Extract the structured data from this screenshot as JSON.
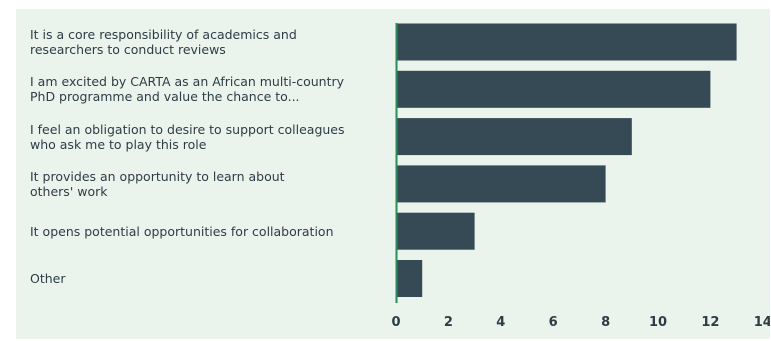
{
  "chart_data": {
    "type": "bar",
    "orientation": "horizontal",
    "categories": [
      "It is a core responsibility of academics and\nresearchers to conduct reviews",
      "I am excited by CARTA as an African multi-country\nPhD programme and value the chance to...",
      "I feel an obligation to desire to support colleagues\nwho ask me to play this role",
      "It provides an opportunity to learn about\nothers' work",
      "It opens potential opportunities for collaboration",
      "Other"
    ],
    "values": [
      13,
      12,
      9,
      8,
      3,
      1
    ],
    "title": "",
    "xlabel": "",
    "ylabel": "",
    "xlim": [
      0,
      14
    ],
    "x_ticks": [
      "0",
      "2",
      "4",
      "6",
      "8",
      "10",
      "12",
      "14"
    ],
    "grid": false,
    "legend": "none"
  },
  "colors": {
    "bar": "#364a55",
    "axis_line": "#2e8b57",
    "panel_background": "#ebf3ed",
    "text": "#2d3d45"
  }
}
